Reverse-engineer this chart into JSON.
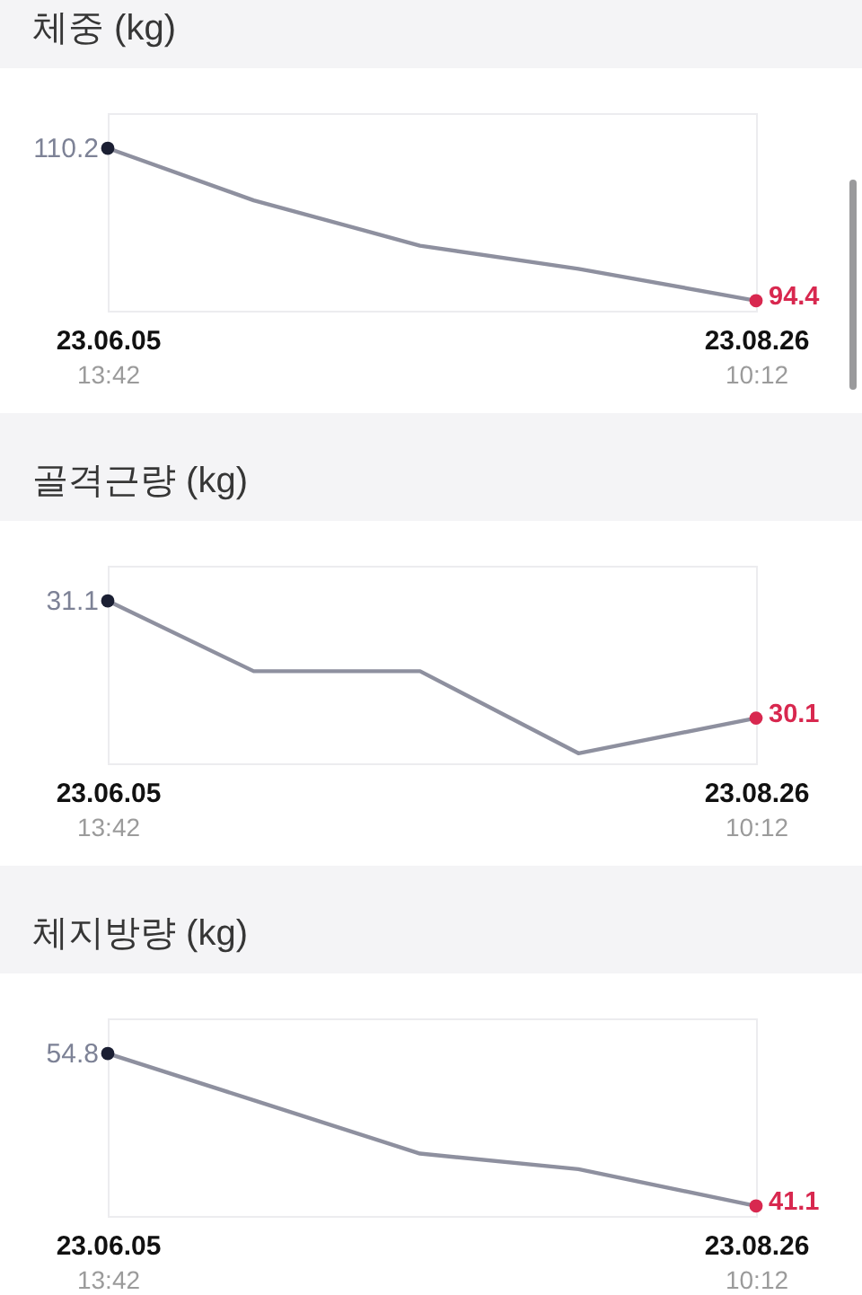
{
  "chart_data": [
    {
      "type": "line",
      "title": "체중 (kg)",
      "x": [
        "--06-05T13:42",
        "--06-24",
        "--07-15",
        "--08-04",
        "--08-26T10:12"
      ],
      "xlim": [
        "--06-05T13:42",
        "--08-26T10:12"
      ],
      "xticks": [
        {
          "value": "--06-05T13:42",
          "label": "23.06.05\n13:42"
        },
        {
          "value": "--08-26T10:12",
          "label": "23.08.26\n10:12"
        }
      ],
      "tick_labels": "x",
      "series": [
        {
          "color": "#8e909f",
          "values": [
            110.2,
            104.8,
            100.1,
            97.7,
            94.4
          ]
        },
        {
          "type": "scatter",
          "marker": "circle",
          "color": "#1b1f33",
          "x": [
            "--06-05T13:42"
          ],
          "values": [
            110.2
          ],
          "value_labels": [
            "110.2"
          ]
        },
        {
          "type": "scatter",
          "marker": "circle",
          "color": "#d8284f",
          "x": [
            "--08-26T10:12"
          ],
          "values": [
            94.4
          ],
          "value_labels": [
            "94.4"
          ]
        }
      ]
    },
    {
      "type": "line",
      "title": "골격근량 (kg)",
      "x": [
        "--06-05T13:42",
        "--06-24",
        "--07-15",
        "--08-04",
        "--08-26T10:12"
      ],
      "xlim": [
        "--06-05T13:42",
        "--08-26T10:12"
      ],
      "xticks": [
        {
          "value": "--06-05T13:42",
          "label": "23.06.05\n13:42"
        },
        {
          "value": "--08-26T10:12",
          "label": "23.08.26\n10:12"
        }
      ],
      "tick_labels": "x",
      "series": [
        {
          "color": "#8e909f",
          "values": [
            31.1,
            30.5,
            30.5,
            29.8,
            30.1
          ]
        },
        {
          "type": "scatter",
          "marker": "circle",
          "color": "#1b1f33",
          "x": [
            "--06-05T13:42"
          ],
          "values": [
            31.1
          ],
          "value_labels": [
            "31.1"
          ]
        },
        {
          "type": "scatter",
          "marker": "circle",
          "color": "#d8284f",
          "x": [
            "--08-26T10:12"
          ],
          "values": [
            30.1
          ],
          "value_labels": [
            "30.1"
          ]
        }
      ]
    },
    {
      "type": "line",
      "title": "체지방량 (kg)",
      "x": [
        "--06-05T13:42",
        "--06-24",
        "--07-15",
        "--08-04",
        "--08-26T10:12"
      ],
      "xlim": [
        "--06-05T13:42",
        "--08-26T10:12"
      ],
      "xticks": [
        {
          "value": "--06-05T13:42",
          "label": "23.06.05\n13:42"
        },
        {
          "value": "--08-26T10:12",
          "label": "23.08.26\n10:12"
        }
      ],
      "tick_labels": "x",
      "series": [
        {
          "color": "#8e909f",
          "values": [
            54.8,
            50.6,
            45.8,
            44.4,
            41.1
          ]
        },
        {
          "type": "scatter",
          "marker": "circle",
          "color": "#1b1f33",
          "x": [
            "--06-05T13:42"
          ],
          "values": [
            54.8
          ],
          "value_labels": [
            "54.8"
          ]
        },
        {
          "type": "scatter",
          "marker": "circle",
          "color": "#d8284f",
          "x": [
            "--08-26T10:12"
          ],
          "values": [
            41.1
          ],
          "value_labels": [
            "41.1"
          ]
        }
      ]
    }
  ]
}
